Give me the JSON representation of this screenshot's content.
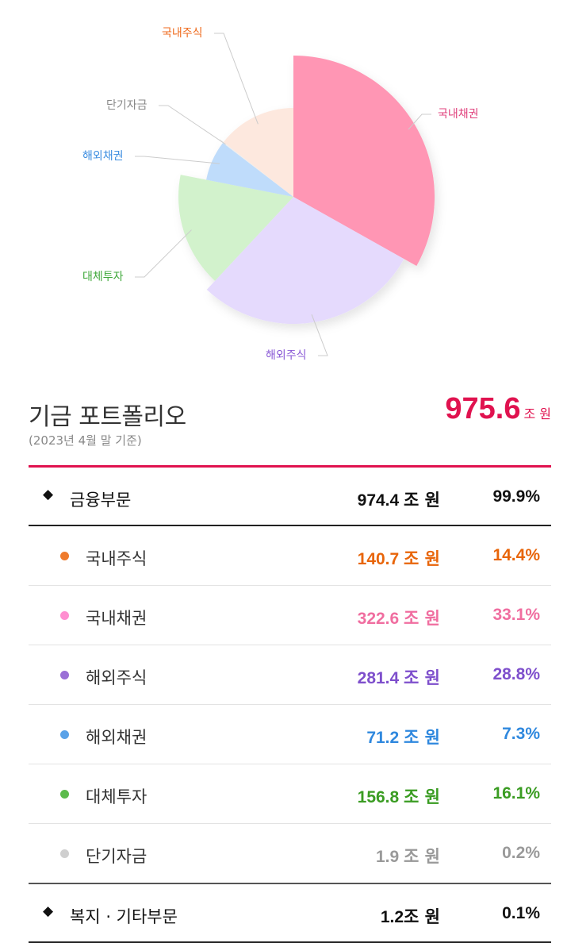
{
  "chart_data": {
    "type": "pie",
    "slices": [
      {
        "label": "국내채권",
        "value": 33.1,
        "color": "#ff96b4",
        "label_color": "#e0407c"
      },
      {
        "label": "해외주식",
        "value": 28.8,
        "color": "#e5dafd",
        "label_color": "#8a5ad6"
      },
      {
        "label": "대체투자",
        "value": 16.1,
        "color": "#d2f2cc",
        "label_color": "#3fa83a"
      },
      {
        "label": "해외채권",
        "value": 7.3,
        "color": "#bfdcfb",
        "label_color": "#3d8ee0"
      },
      {
        "label": "단기자금",
        "value": 0.2,
        "color": "#eeeeee",
        "label_color": "#888888"
      },
      {
        "label": "국내주식",
        "value": 14.4,
        "color": "#fde8de",
        "label_color": "#ef6a1c"
      }
    ]
  },
  "summary": {
    "title": "기금 포트폴리오",
    "basis": "(2023년 4월 말 기준)",
    "total": "975.6",
    "total_unit": "조 원",
    "accent_color": "#e0124f"
  },
  "rows": {
    "financial": {
      "name": "금융부문",
      "amount": "974.4",
      "unit": "조 원",
      "pct": "99.9%"
    },
    "items": [
      {
        "name": "국내주식",
        "amount": "140.7",
        "unit": "조 원",
        "pct": "14.4%",
        "color": "#ef7b2c",
        "text_color": "#e8650a"
      },
      {
        "name": "국내채권",
        "amount": "322.6",
        "unit": "조 원",
        "pct": "33.1%",
        "color": "#ff8fd0",
        "text_color": "#f06ea0"
      },
      {
        "name": "해외주식",
        "amount": "281.4",
        "unit": "조 원",
        "pct": "28.8%",
        "color": "#9a6fd6",
        "text_color": "#7e4fcc"
      },
      {
        "name": "해외채권",
        "amount": "71.2",
        "unit": "조 원",
        "pct": "7.3%",
        "color": "#5aa2e8",
        "text_color": "#2f88de"
      },
      {
        "name": "대체투자",
        "amount": "156.8",
        "unit": "조 원",
        "pct": "16.1%",
        "color": "#5cbb4c",
        "text_color": "#3a9c22"
      },
      {
        "name": "단기자금",
        "amount": "1.9",
        "unit": "조 원",
        "pct": "0.2%",
        "color": "#cfcfcf",
        "text_color": "#999999"
      }
    ],
    "welfare": {
      "name": "복지 · 기타부문",
      "amount": "1.2",
      "unit": "조 원",
      "pct": "0.1%"
    }
  }
}
